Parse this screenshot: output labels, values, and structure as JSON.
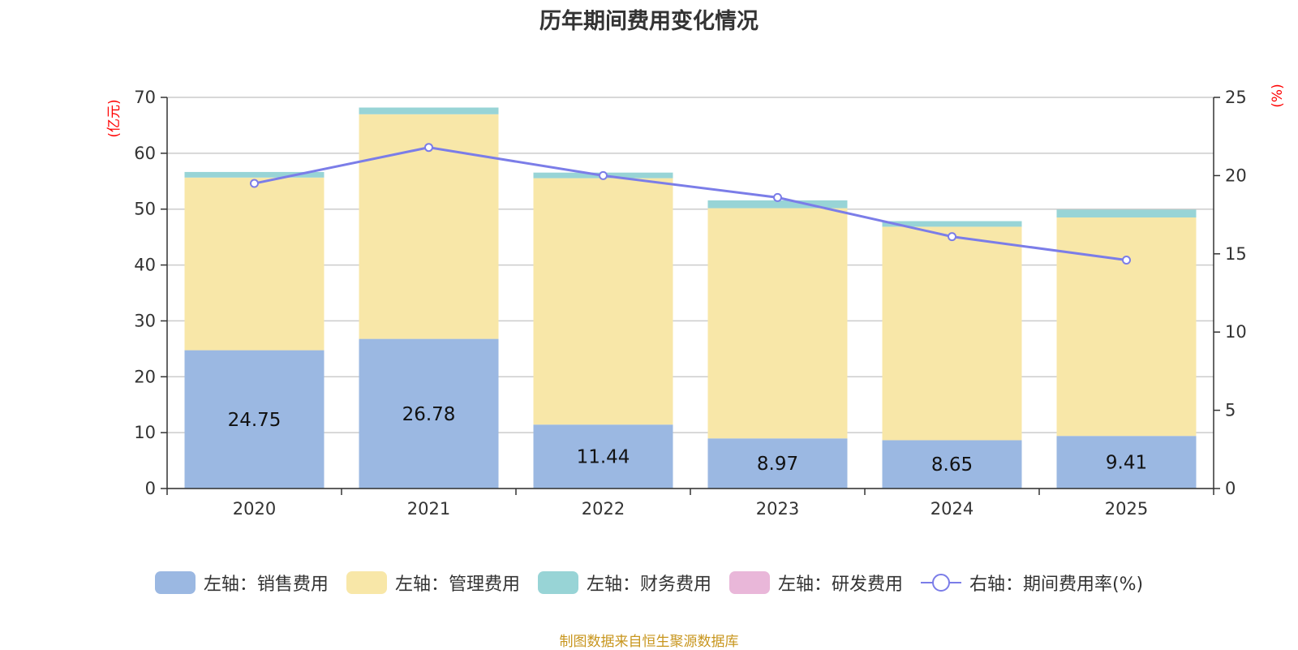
{
  "chart_data": {
    "type": "bar",
    "title": "历年期间费用变化情况",
    "categories": [
      "2020",
      "2021",
      "2022",
      "2023",
      "2024",
      "2025"
    ],
    "series": [
      {
        "name": "左轴：销售费用",
        "values": [
          24.75,
          26.78,
          11.44,
          8.97,
          8.65,
          9.41
        ],
        "color": "#9bb8e2",
        "labels": [
          "24.75",
          "26.78",
          "11.44",
          "8.97",
          "8.65",
          "9.41"
        ]
      },
      {
        "name": "左轴：管理费用",
        "values": [
          30.9,
          40.2,
          44.1,
          41.2,
          38.2,
          39.1
        ],
        "color": "#f8e7a8"
      },
      {
        "name": "左轴：财务费用",
        "values": [
          1.0,
          1.2,
          1.0,
          1.4,
          1.0,
          1.4
        ],
        "color": "#98d4d6"
      },
      {
        "name": "左轴：研发费用",
        "values": [
          0,
          0,
          0,
          0,
          0,
          0
        ],
        "color": "#e9b7d9"
      },
      {
        "name": "右轴：期间费用率(%)",
        "values": [
          19.5,
          21.8,
          20.0,
          18.6,
          16.1,
          14.6
        ],
        "color": "#7b7de8",
        "type": "line",
        "axis": "right"
      }
    ],
    "ylim_left": [
      0,
      70
    ],
    "yticks_left": [
      "0",
      "10",
      "20",
      "30",
      "40",
      "50",
      "60",
      "70"
    ],
    "ylim_right": [
      0,
      25
    ],
    "yticks_right": [
      "0",
      "5",
      "10",
      "15",
      "20",
      "25"
    ],
    "ylabel_left": "(亿元)",
    "ylabel_right": "(%)",
    "legend_position": "bottom",
    "grid": true
  },
  "source": "制图数据来自恒生聚源数据库"
}
